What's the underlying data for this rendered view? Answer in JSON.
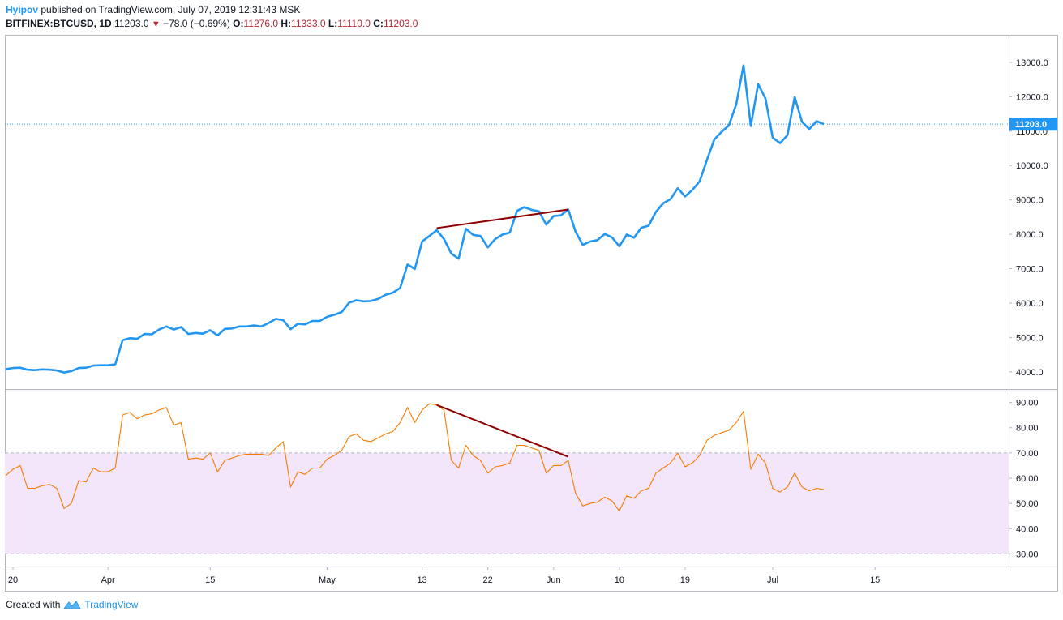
{
  "header": {
    "author": "Hyipov",
    "published": "published on TradingView.com, July 07, 2019 12:31:43 MSK",
    "symbol": "BITFINEX:BTCUSD, 1D",
    "last": "11203.0",
    "change": "−78.0 (−0.69%)",
    "o_label": "O:",
    "o_value": "11276.0",
    "h_label": "H:",
    "h_value": "11333.0",
    "l_label": "L:",
    "l_value": "11110.0",
    "c_label": "C:",
    "c_value": "11203.0"
  },
  "footer": {
    "created_with": "Created with",
    "brand": "TradingView"
  },
  "colors": {
    "price_line": "#2196f3",
    "rsi_line": "#f57c00",
    "trendline": "#8b0000",
    "rsi_band": "#f3e5fa",
    "last_price_label_bg": "#2196f3"
  },
  "chart_data": [
    {
      "type": "line",
      "ylim": [
        3500,
        13800
      ],
      "y_ticks": [
        "4000.0",
        "5000.0",
        "6000.0",
        "7000.0",
        "8000.0",
        "9000.0",
        "10000.0",
        "11000.0",
        "12000.0",
        "13000.0"
      ],
      "x_tick_labels": [
        "20",
        "Apr",
        "15",
        "May",
        "13",
        "22",
        "Jun",
        "10",
        "19",
        "Jul",
        "15"
      ],
      "last_price_label": "11203.0",
      "last_price": 11203,
      "series": [
        {
          "values": [
            4080,
            4110,
            4120,
            4060,
            4050,
            4070,
            4060,
            4040,
            3980,
            4020,
            4110,
            4120,
            4180,
            4190,
            4190,
            4220,
            4920,
            4980,
            4960,
            5100,
            5090,
            5230,
            5320,
            5230,
            5300,
            5100,
            5130,
            5110,
            5210,
            5060,
            5250,
            5260,
            5320,
            5320,
            5350,
            5320,
            5420,
            5540,
            5500,
            5240,
            5400,
            5380,
            5480,
            5480,
            5600,
            5660,
            5740,
            6010,
            6080,
            6050,
            6060,
            6120,
            6240,
            6300,
            6440,
            7120,
            6990,
            7790,
            7950,
            8120,
            7860,
            7440,
            7290,
            8160,
            7980,
            7950,
            7620,
            7860,
            7990,
            8050,
            8680,
            8790,
            8710,
            8670,
            8280,
            8530,
            8550,
            8720,
            8080,
            7690,
            7790,
            7830,
            8010,
            7910,
            7650,
            7990,
            7900,
            8190,
            8250,
            8650,
            8900,
            9020,
            9340,
            9100,
            9290,
            9540,
            10170,
            10760,
            10980,
            11170,
            11780,
            12910,
            11150,
            12370,
            11950,
            10810,
            10650,
            10880,
            11990,
            11270,
            11060,
            11290,
            11203
          ]
        }
      ],
      "annotations": [
        {
          "type": "trendline",
          "from": [
            59,
            8180
          ],
          "to": [
            77,
            8720
          ]
        }
      ]
    },
    {
      "type": "line",
      "ylim": [
        25,
        95
      ],
      "y_ticks": [
        "30.00",
        "40.00",
        "50.00",
        "60.00",
        "70.00",
        "80.00",
        "90.00"
      ],
      "band": [
        30,
        70
      ],
      "series": [
        {
          "values": [
            61,
            63.5,
            65,
            56,
            56,
            57,
            57.5,
            56,
            48,
            50,
            59,
            58.5,
            64,
            62.5,
            62.5,
            64,
            85,
            86,
            83.5,
            85,
            85.5,
            87,
            88,
            81,
            82,
            67.5,
            68,
            67.5,
            70,
            62.5,
            67,
            68,
            69,
            69.5,
            69.5,
            69.5,
            69,
            72,
            74.5,
            56.5,
            62.5,
            61.5,
            64,
            64,
            67.5,
            69,
            71,
            76.5,
            77.5,
            75,
            74.5,
            76,
            77.5,
            78.5,
            82,
            88,
            82,
            87,
            89.5,
            89,
            87,
            67,
            64,
            73,
            69,
            67,
            62,
            64.5,
            65,
            66,
            73,
            73,
            72,
            71,
            62,
            65,
            65,
            67,
            54,
            49,
            50,
            50.5,
            52.5,
            51,
            47,
            53,
            52,
            55,
            56,
            62,
            64,
            66,
            70,
            64.5,
            66,
            69,
            75,
            77,
            78,
            79,
            82,
            86.5,
            63.5,
            69.5,
            66,
            56,
            54.5,
            56.5,
            62,
            56.5,
            55,
            56,
            55.5
          ]
        }
      ],
      "annotations": [
        {
          "type": "trendline",
          "from": [
            59,
            89
          ],
          "to": [
            77,
            68.5
          ]
        }
      ]
    }
  ]
}
